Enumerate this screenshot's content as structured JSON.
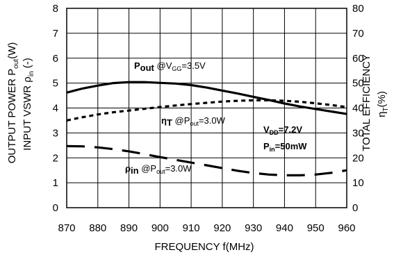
{
  "chart_data": {
    "type": "line",
    "xlabel": "FREQUENCY f(MHz)",
    "ylabel_left": {
      "line1": "OUTPUT POWER P",
      "line1_sub": "out",
      "line1_end": "(W)",
      "line2": "INPUT VSWR ρ",
      "line2_sub": "in",
      "line2_end": " (-)"
    },
    "ylabel_right": {
      "line1": "TOTAL EFFICIENCY",
      "line2": "η",
      "line2_sub": "T",
      "line2_end": "(%)"
    },
    "xlim": [
      870,
      960
    ],
    "ylim_left": [
      0,
      8
    ],
    "ylim_right": [
      0,
      80
    ],
    "x_ticks": [
      870,
      880,
      890,
      900,
      910,
      920,
      930,
      940,
      950,
      960
    ],
    "y_ticks_left": [
      0,
      1,
      2,
      3,
      4,
      5,
      6,
      7,
      8
    ],
    "y_ticks_right": [
      0,
      10,
      20,
      30,
      40,
      50,
      60,
      70,
      80
    ],
    "grid": true,
    "series": [
      {
        "axis": "left",
        "style": "solid",
        "x": [
          870,
          875,
          880,
          885,
          890,
          895,
          900,
          905,
          910,
          915,
          920,
          925,
          930,
          935,
          940,
          945,
          950,
          955,
          960
        ],
        "y": [
          4.62,
          4.78,
          4.9,
          5.0,
          5.04,
          5.04,
          5.01,
          4.98,
          4.92,
          4.82,
          4.7,
          4.58,
          4.45,
          4.32,
          4.18,
          4.06,
          3.96,
          3.86,
          3.76
        ]
      },
      {
        "axis": "right",
        "style": "dotted",
        "x": [
          870,
          875,
          880,
          885,
          890,
          895,
          900,
          905,
          910,
          915,
          920,
          925,
          930,
          935,
          940,
          945,
          950,
          955,
          960
        ],
        "y": [
          35.0,
          36.3,
          37.4,
          38.3,
          39.0,
          39.7,
          40.4,
          41.0,
          41.6,
          42.1,
          42.6,
          42.9,
          43.1,
          43.1,
          42.9,
          42.5,
          41.9,
          41.2,
          40.4
        ]
      },
      {
        "axis": "left",
        "style": "dashed",
        "x": [
          870,
          875,
          880,
          885,
          890,
          895,
          900,
          905,
          910,
          915,
          920,
          925,
          930,
          935,
          940,
          945,
          950,
          955,
          960
        ],
        "y": [
          2.47,
          2.46,
          2.42,
          2.35,
          2.26,
          2.15,
          2.03,
          1.92,
          1.81,
          1.7,
          1.59,
          1.48,
          1.39,
          1.33,
          1.3,
          1.3,
          1.33,
          1.4,
          1.5
        ]
      }
    ],
    "annotations": {
      "pout": {
        "main": "P",
        "sub": "out",
        "tail1": " @V",
        "tail_sub": "GG",
        "tail2": "=3.5V"
      },
      "eta": {
        "main": "η",
        "sub": "T",
        "tail1": " @P",
        "tail_sub": "out",
        "tail2": "=3.0W"
      },
      "rho": {
        "main": "ρ",
        "sub": "in",
        "tail1": " @P",
        "tail_sub": "out",
        "tail2": "=3.0W"
      },
      "vdd": {
        "main": "V",
        "sub": "DD",
        "tail": "=7.2V"
      },
      "pin": {
        "main": "P",
        "sub": "in",
        "tail": "=50mW"
      }
    }
  }
}
